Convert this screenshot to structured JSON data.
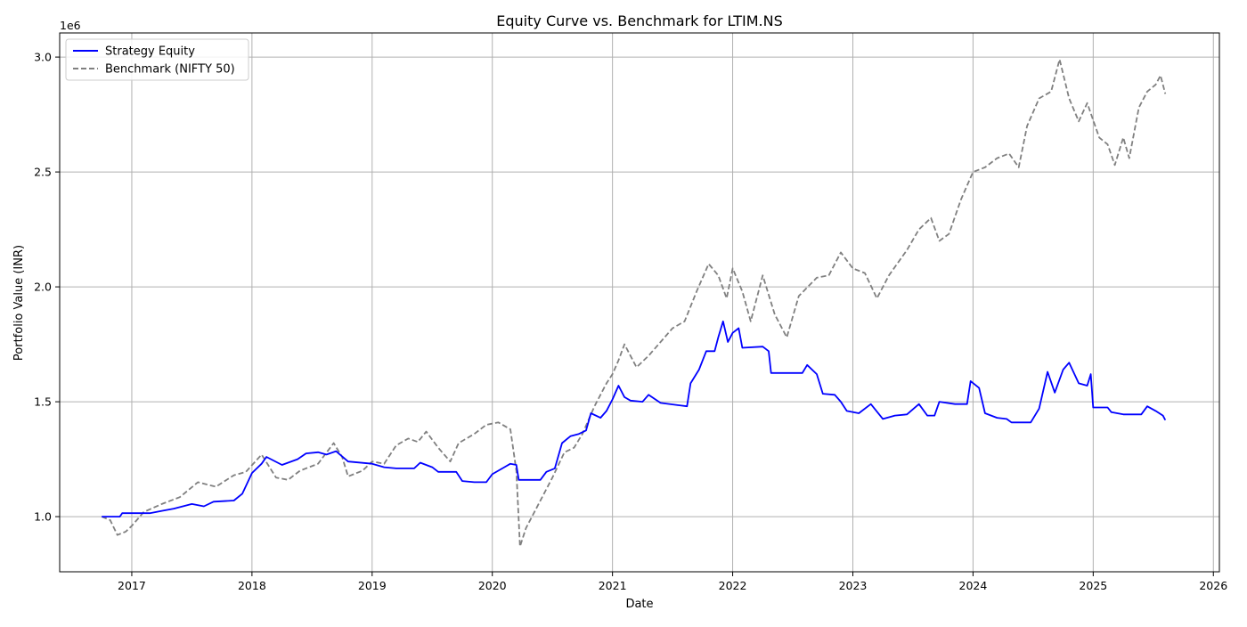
{
  "chart_data": {
    "type": "line",
    "title": "Equity Curve vs. Benchmark for LTIM.NS",
    "xlabel": "Date",
    "ylabel": "Portfolio Value (INR)",
    "y_offset_label": "1e6",
    "xlim": [
      2016.4,
      2026.05
    ],
    "ylim": [
      760000,
      3105000
    ],
    "x_ticks": [
      2017,
      2018,
      2019,
      2020,
      2021,
      2022,
      2023,
      2024,
      2025,
      2026
    ],
    "x_tick_labels": [
      "2017",
      "2018",
      "2019",
      "2020",
      "2021",
      "2022",
      "2023",
      "2024",
      "2025",
      "2026"
    ],
    "y_ticks": [
      1000000,
      1500000,
      2000000,
      2500000,
      3000000
    ],
    "y_tick_labels": [
      "1.0",
      "1.5",
      "2.0",
      "2.5",
      "3.0"
    ],
    "grid": true,
    "legend_position": "top-left",
    "series": [
      {
        "name": "Strategy Equity",
        "color": "#0000ff",
        "style": "solid",
        "points": [
          [
            2016.75,
            1000000
          ],
          [
            2016.9,
            1000000
          ],
          [
            2016.92,
            1015000
          ],
          [
            2017.15,
            1015000
          ],
          [
            2017.25,
            1025000
          ],
          [
            2017.35,
            1035000
          ],
          [
            2017.5,
            1055000
          ],
          [
            2017.6,
            1045000
          ],
          [
            2017.68,
            1065000
          ],
          [
            2017.85,
            1070000
          ],
          [
            2017.92,
            1100000
          ],
          [
            2018.0,
            1190000
          ],
          [
            2018.08,
            1230000
          ],
          [
            2018.12,
            1260000
          ],
          [
            2018.25,
            1225000
          ],
          [
            2018.38,
            1250000
          ],
          [
            2018.45,
            1275000
          ],
          [
            2018.55,
            1280000
          ],
          [
            2018.62,
            1270000
          ],
          [
            2018.7,
            1285000
          ],
          [
            2018.8,
            1240000
          ],
          [
            2019.0,
            1230000
          ],
          [
            2019.1,
            1215000
          ],
          [
            2019.2,
            1210000
          ],
          [
            2019.35,
            1210000
          ],
          [
            2019.4,
            1235000
          ],
          [
            2019.5,
            1215000
          ],
          [
            2019.55,
            1195000
          ],
          [
            2019.7,
            1195000
          ],
          [
            2019.75,
            1155000
          ],
          [
            2019.85,
            1150000
          ],
          [
            2019.95,
            1150000
          ],
          [
            2020.0,
            1185000
          ],
          [
            2020.1,
            1215000
          ],
          [
            2020.15,
            1230000
          ],
          [
            2020.2,
            1225000
          ],
          [
            2020.22,
            1160000
          ],
          [
            2020.4,
            1160000
          ],
          [
            2020.45,
            1195000
          ],
          [
            2020.52,
            1210000
          ],
          [
            2020.58,
            1320000
          ],
          [
            2020.65,
            1350000
          ],
          [
            2020.72,
            1360000
          ],
          [
            2020.78,
            1375000
          ],
          [
            2020.82,
            1450000
          ],
          [
            2020.9,
            1430000
          ],
          [
            2020.95,
            1460000
          ],
          [
            2021.0,
            1510000
          ],
          [
            2021.05,
            1570000
          ],
          [
            2021.1,
            1520000
          ],
          [
            2021.15,
            1505000
          ],
          [
            2021.25,
            1500000
          ],
          [
            2021.3,
            1530000
          ],
          [
            2021.4,
            1495000
          ],
          [
            2021.55,
            1485000
          ],
          [
            2021.62,
            1480000
          ],
          [
            2021.65,
            1580000
          ],
          [
            2021.72,
            1640000
          ],
          [
            2021.78,
            1720000
          ],
          [
            2021.85,
            1720000
          ],
          [
            2021.88,
            1780000
          ],
          [
            2021.92,
            1850000
          ],
          [
            2021.96,
            1760000
          ],
          [
            2022.0,
            1800000
          ],
          [
            2022.05,
            1820000
          ],
          [
            2022.08,
            1735000
          ],
          [
            2022.25,
            1740000
          ],
          [
            2022.3,
            1720000
          ],
          [
            2022.32,
            1625000
          ],
          [
            2022.58,
            1625000
          ],
          [
            2022.62,
            1660000
          ],
          [
            2022.7,
            1620000
          ],
          [
            2022.75,
            1535000
          ],
          [
            2022.85,
            1530000
          ],
          [
            2022.9,
            1500000
          ],
          [
            2022.95,
            1460000
          ],
          [
            2023.05,
            1450000
          ],
          [
            2023.15,
            1490000
          ],
          [
            2023.25,
            1425000
          ],
          [
            2023.35,
            1440000
          ],
          [
            2023.45,
            1445000
          ],
          [
            2023.55,
            1490000
          ],
          [
            2023.62,
            1440000
          ],
          [
            2023.68,
            1440000
          ],
          [
            2023.72,
            1500000
          ],
          [
            2023.85,
            1490000
          ],
          [
            2023.95,
            1490000
          ],
          [
            2023.98,
            1590000
          ],
          [
            2024.05,
            1560000
          ],
          [
            2024.1,
            1450000
          ],
          [
            2024.2,
            1430000
          ],
          [
            2024.28,
            1425000
          ],
          [
            2024.32,
            1410000
          ],
          [
            2024.48,
            1410000
          ],
          [
            2024.55,
            1470000
          ],
          [
            2024.62,
            1630000
          ],
          [
            2024.68,
            1540000
          ],
          [
            2024.75,
            1640000
          ],
          [
            2024.8,
            1670000
          ],
          [
            2024.88,
            1580000
          ],
          [
            2024.95,
            1570000
          ],
          [
            2024.98,
            1620000
          ],
          [
            2025.0,
            1475000
          ],
          [
            2025.12,
            1475000
          ],
          [
            2025.15,
            1455000
          ],
          [
            2025.25,
            1445000
          ],
          [
            2025.4,
            1445000
          ],
          [
            2025.45,
            1480000
          ],
          [
            2025.52,
            1460000
          ],
          [
            2025.58,
            1440000
          ],
          [
            2025.6,
            1420000
          ]
        ]
      },
      {
        "name": "Benchmark (NIFTY 50)",
        "color": "#808080",
        "style": "dashed",
        "points": [
          [
            2016.75,
            1000000
          ],
          [
            2016.82,
            985000
          ],
          [
            2016.88,
            920000
          ],
          [
            2016.95,
            935000
          ],
          [
            2017.0,
            960000
          ],
          [
            2017.1,
            1020000
          ],
          [
            2017.25,
            1055000
          ],
          [
            2017.4,
            1085000
          ],
          [
            2017.55,
            1150000
          ],
          [
            2017.7,
            1130000
          ],
          [
            2017.85,
            1180000
          ],
          [
            2017.95,
            1195000
          ],
          [
            2018.08,
            1270000
          ],
          [
            2018.2,
            1170000
          ],
          [
            2018.3,
            1160000
          ],
          [
            2018.4,
            1200000
          ],
          [
            2018.55,
            1230000
          ],
          [
            2018.68,
            1320000
          ],
          [
            2018.75,
            1260000
          ],
          [
            2018.8,
            1175000
          ],
          [
            2018.92,
            1200000
          ],
          [
            2019.0,
            1240000
          ],
          [
            2019.1,
            1230000
          ],
          [
            2019.2,
            1310000
          ],
          [
            2019.3,
            1340000
          ],
          [
            2019.38,
            1325000
          ],
          [
            2019.45,
            1370000
          ],
          [
            2019.55,
            1300000
          ],
          [
            2019.65,
            1240000
          ],
          [
            2019.72,
            1320000
          ],
          [
            2019.85,
            1360000
          ],
          [
            2019.95,
            1400000
          ],
          [
            2020.05,
            1410000
          ],
          [
            2020.15,
            1380000
          ],
          [
            2020.2,
            1200000
          ],
          [
            2020.23,
            870000
          ],
          [
            2020.28,
            950000
          ],
          [
            2020.38,
            1050000
          ],
          [
            2020.5,
            1170000
          ],
          [
            2020.6,
            1280000
          ],
          [
            2020.68,
            1300000
          ],
          [
            2020.75,
            1360000
          ],
          [
            2020.85,
            1480000
          ],
          [
            2020.95,
            1580000
          ],
          [
            2021.0,
            1620000
          ],
          [
            2021.05,
            1680000
          ],
          [
            2021.1,
            1750000
          ],
          [
            2021.2,
            1650000
          ],
          [
            2021.3,
            1700000
          ],
          [
            2021.4,
            1760000
          ],
          [
            2021.5,
            1820000
          ],
          [
            2021.6,
            1850000
          ],
          [
            2021.7,
            1980000
          ],
          [
            2021.8,
            2100000
          ],
          [
            2021.88,
            2050000
          ],
          [
            2021.95,
            1950000
          ],
          [
            2022.0,
            2080000
          ],
          [
            2022.08,
            1980000
          ],
          [
            2022.15,
            1850000
          ],
          [
            2022.25,
            2050000
          ],
          [
            2022.35,
            1880000
          ],
          [
            2022.45,
            1780000
          ],
          [
            2022.55,
            1960000
          ],
          [
            2022.7,
            2040000
          ],
          [
            2022.8,
            2050000
          ],
          [
            2022.9,
            2150000
          ],
          [
            2023.0,
            2080000
          ],
          [
            2023.1,
            2060000
          ],
          [
            2023.2,
            1950000
          ],
          [
            2023.3,
            2050000
          ],
          [
            2023.45,
            2160000
          ],
          [
            2023.55,
            2250000
          ],
          [
            2023.65,
            2300000
          ],
          [
            2023.72,
            2200000
          ],
          [
            2023.8,
            2230000
          ],
          [
            2023.9,
            2380000
          ],
          [
            2024.0,
            2500000
          ],
          [
            2024.1,
            2520000
          ],
          [
            2024.2,
            2560000
          ],
          [
            2024.3,
            2580000
          ],
          [
            2024.38,
            2520000
          ],
          [
            2024.45,
            2700000
          ],
          [
            2024.55,
            2820000
          ],
          [
            2024.65,
            2850000
          ],
          [
            2024.72,
            2990000
          ],
          [
            2024.8,
            2820000
          ],
          [
            2024.88,
            2720000
          ],
          [
            2024.95,
            2800000
          ],
          [
            2025.05,
            2650000
          ],
          [
            2025.12,
            2620000
          ],
          [
            2025.18,
            2530000
          ],
          [
            2025.25,
            2650000
          ],
          [
            2025.3,
            2560000
          ],
          [
            2025.38,
            2780000
          ],
          [
            2025.45,
            2850000
          ],
          [
            2025.52,
            2880000
          ],
          [
            2025.56,
            2920000
          ],
          [
            2025.6,
            2840000
          ]
        ]
      }
    ]
  }
}
